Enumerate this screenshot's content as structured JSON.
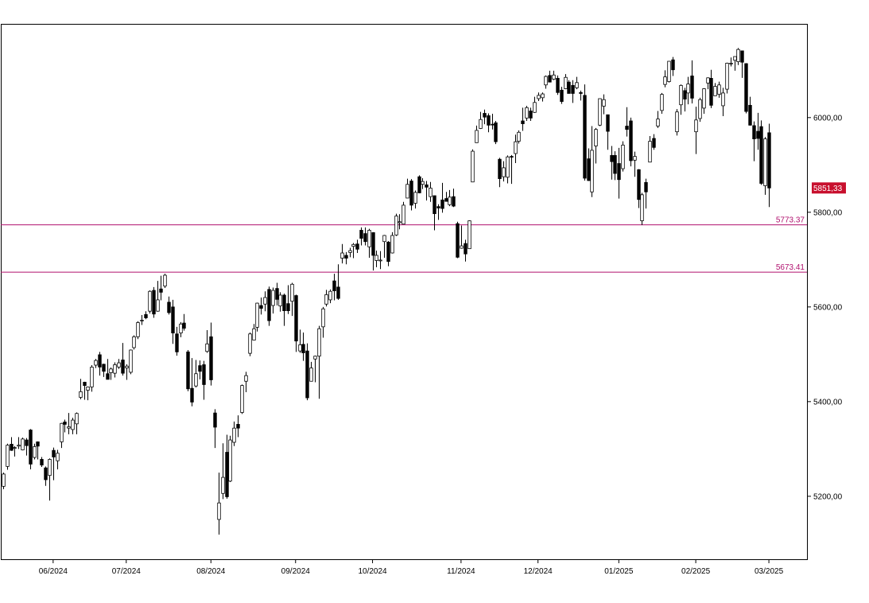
{
  "chart_data": {
    "type": "candlestick",
    "ohlc": [
      [
        5221,
        5250,
        5215,
        5247
      ],
      [
        5263,
        5311,
        5256,
        5308
      ],
      [
        5310,
        5325,
        5296,
        5297
      ],
      [
        5303,
        5306,
        5284,
        5303
      ],
      [
        5306,
        5325,
        5300,
        5308
      ],
      [
        5298,
        5324,
        5297,
        5321
      ],
      [
        5319,
        5323,
        5286,
        5307
      ],
      [
        5340,
        5342,
        5257,
        5268
      ],
      [
        5282,
        5311,
        5278,
        5305
      ],
      [
        5315,
        5316,
        5278,
        5306
      ],
      [
        5278,
        5283,
        5262,
        5266
      ],
      [
        5260,
        5263,
        5222,
        5235
      ],
      [
        5244,
        5280,
        5191,
        5278
      ],
      [
        5297,
        5303,
        5234,
        5283
      ],
      [
        5275,
        5298,
        5257,
        5291
      ],
      [
        5315,
        5355,
        5302,
        5354
      ],
      [
        5357,
        5362,
        5335,
        5352
      ],
      [
        5344,
        5376,
        5331,
        5347
      ],
      [
        5341,
        5366,
        5331,
        5361
      ],
      [
        5353,
        5377,
        5331,
        5375
      ],
      [
        5409,
        5448,
        5405,
        5421
      ],
      [
        5441,
        5442,
        5404,
        5434
      ],
      [
        5424,
        5432,
        5403,
        5431
      ],
      [
        5431,
        5477,
        5421,
        5473
      ],
      [
        5477,
        5490,
        5471,
        5487
      ],
      [
        5499,
        5505,
        5455,
        5473
      ],
      [
        5479,
        5480,
        5452,
        5464
      ],
      [
        5459,
        5490,
        5447,
        5447
      ],
      [
        5461,
        5472,
        5446,
        5469
      ],
      [
        5460,
        5483,
        5451,
        5478
      ],
      [
        5473,
        5490,
        5469,
        5482
      ],
      [
        5488,
        5524,
        5455,
        5460
      ],
      [
        5471,
        5479,
        5446,
        5475
      ],
      [
        5462,
        5510,
        5458,
        5509
      ],
      [
        5514,
        5540,
        5510,
        5537
      ],
      [
        5537,
        5570,
        5532,
        5567
      ],
      [
        5572,
        5583,
        5562,
        5572
      ],
      [
        5584,
        5591,
        5574,
        5577
      ],
      [
        5591,
        5635,
        5586,
        5633
      ],
      [
        5635,
        5642,
        5577,
        5585
      ],
      [
        5591,
        5655,
        5590,
        5615
      ],
      [
        5638,
        5666,
        5614,
        5631
      ],
      [
        5644,
        5670,
        5640,
        5667
      ],
      [
        5610,
        5622,
        5584,
        5588
      ],
      [
        5600,
        5615,
        5522,
        5545
      ],
      [
        5543,
        5558,
        5497,
        5505
      ],
      [
        5545,
        5568,
        5536,
        5564
      ],
      [
        5566,
        5585,
        5550,
        5555
      ],
      [
        5505,
        5509,
        5422,
        5427
      ],
      [
        5428,
        5492,
        5390,
        5399
      ],
      [
        5433,
        5488,
        5430,
        5459
      ],
      [
        5476,
        5487,
        5447,
        5464
      ],
      [
        5478,
        5486,
        5404,
        5436
      ],
      [
        5506,
        5551,
        5503,
        5522
      ],
      [
        5537,
        5567,
        5434,
        5446
      ],
      [
        5376,
        5384,
        5302,
        5346
      ],
      [
        5151,
        5250,
        5119,
        5186
      ],
      [
        5206,
        5312,
        5194,
        5240
      ],
      [
        5293,
        5330,
        5195,
        5199
      ],
      [
        5232,
        5328,
        5230,
        5319
      ],
      [
        5314,
        5358,
        5306,
        5344
      ],
      [
        5352,
        5371,
        5325,
        5344
      ],
      [
        5377,
        5436,
        5374,
        5434
      ],
      [
        5443,
        5463,
        5420,
        5455
      ],
      [
        5502,
        5546,
        5496,
        5543
      ],
      [
        5530,
        5564,
        5530,
        5554
      ],
      [
        5557,
        5609,
        5548,
        5608
      ],
      [
        5603,
        5620,
        5584,
        5597
      ],
      [
        5606,
        5633,
        5591,
        5620
      ],
      [
        5637,
        5643,
        5560,
        5571
      ],
      [
        5603,
        5641,
        5586,
        5635
      ],
      [
        5639,
        5651,
        5603,
        5616
      ],
      [
        5602,
        5631,
        5590,
        5625
      ],
      [
        5625,
        5628,
        5560,
        5592
      ],
      [
        5607,
        5646,
        5585,
        5592
      ],
      [
        5612,
        5651,
        5581,
        5648
      ],
      [
        5624,
        5626,
        5505,
        5528
      ],
      [
        5507,
        5552,
        5503,
        5520
      ],
      [
        5521,
        5546,
        5486,
        5503
      ],
      [
        5507,
        5523,
        5403,
        5408
      ],
      [
        5443,
        5484,
        5443,
        5471
      ],
      [
        5490,
        5497,
        5441,
        5496
      ],
      [
        5496,
        5560,
        5406,
        5554
      ],
      [
        5558,
        5600,
        5535,
        5596
      ],
      [
        5606,
        5636,
        5601,
        5626
      ],
      [
        5615,
        5637,
        5608,
        5633
      ],
      [
        5655,
        5670,
        5614,
        5634
      ],
      [
        5642,
        5690,
        5615,
        5618
      ],
      [
        5703,
        5733,
        5692,
        5714
      ],
      [
        5709,
        5716,
        5690,
        5703
      ],
      [
        5715,
        5725,
        5705,
        5719
      ],
      [
        5728,
        5735,
        5703,
        5732
      ],
      [
        5733,
        5742,
        5714,
        5722
      ],
      [
        5762,
        5768,
        5730,
        5745
      ],
      [
        5755,
        5768,
        5730,
        5738
      ],
      [
        5727,
        5765,
        5704,
        5762
      ],
      [
        5757,
        5758,
        5677,
        5709
      ],
      [
        5698,
        5719,
        5684,
        5709
      ],
      [
        5698,
        5718,
        5680,
        5699
      ],
      [
        5738,
        5752,
        5704,
        5751
      ],
      [
        5737,
        5739,
        5686,
        5696
      ],
      [
        5714,
        5758,
        5713,
        5751
      ],
      [
        5752,
        5797,
        5750,
        5792
      ],
      [
        5778,
        5796,
        5764,
        5780
      ],
      [
        5775,
        5822,
        5775,
        5815
      ],
      [
        5830,
        5871,
        5830,
        5859
      ],
      [
        5866,
        5870,
        5804,
        5815
      ],
      [
        5819,
        5846,
        5808,
        5842
      ],
      [
        5875,
        5878,
        5840,
        5841
      ],
      [
        5859,
        5872,
        5849,
        5865
      ],
      [
        5858,
        5866,
        5825,
        5853
      ],
      [
        5833,
        5864,
        5822,
        5851
      ],
      [
        5835,
        5835,
        5762,
        5797
      ],
      [
        5812,
        5817,
        5784,
        5809
      ],
      [
        5826,
        5862,
        5799,
        5808
      ],
      [
        5829,
        5843,
        5824,
        5823
      ],
      [
        5816,
        5847,
        5813,
        5832
      ],
      [
        5833,
        5850,
        5811,
        5813
      ],
      [
        5776,
        5780,
        5703,
        5705
      ],
      [
        5724,
        5772,
        5723,
        5729
      ],
      [
        5734,
        5742,
        5696,
        5712
      ],
      [
        5723,
        5783,
        5723,
        5782
      ],
      [
        5864,
        5933,
        5864,
        5929
      ],
      [
        5947,
        5983,
        5947,
        5973
      ],
      [
        5977,
        6012,
        5976,
        5996
      ],
      [
        6009,
        6017,
        5986,
        6001
      ],
      [
        6004,
        6009,
        5969,
        5984
      ],
      [
        5986,
        6008,
        5975,
        5985
      ],
      [
        5989,
        5993,
        5944,
        5949
      ],
      [
        5912,
        5915,
        5853,
        5871
      ],
      [
        5875,
        5908,
        5865,
        5894
      ],
      [
        5874,
        5920,
        5861,
        5917
      ],
      [
        5918,
        5921,
        5860,
        5917
      ],
      [
        5924,
        5964,
        5904,
        5949
      ],
      [
        5950,
        5973,
        5945,
        5969
      ],
      [
        5993,
        6021,
        5972,
        5987
      ],
      [
        5999,
        6025,
        5993,
        6021
      ],
      [
        6014,
        6021,
        5993,
        5999
      ],
      [
        6011,
        6044,
        6010,
        6032
      ],
      [
        6040,
        6053,
        6035,
        6047
      ],
      [
        6042,
        6053,
        6034,
        6050
      ],
      [
        6069,
        6089,
        6061,
        6087
      ],
      [
        6089,
        6099,
        6075,
        6075
      ],
      [
        6081,
        6099,
        6079,
        6090
      ],
      [
        6083,
        6089,
        6048,
        6053
      ],
      [
        6058,
        6065,
        6029,
        6034
      ],
      [
        6061,
        6092,
        6060,
        6085
      ],
      [
        6075,
        6079,
        6051,
        6051
      ],
      [
        6068,
        6079,
        6031,
        6051
      ],
      [
        6063,
        6086,
        6060,
        6074
      ],
      [
        6053,
        6057,
        6036,
        6051
      ],
      [
        6047,
        6070,
        5867,
        5872
      ],
      [
        5913,
        5935,
        5866,
        5867
      ],
      [
        5843,
        5982,
        5832,
        5931
      ],
      [
        5940,
        5978,
        5903,
        5975
      ],
      [
        5984,
        6040,
        5982,
        6040
      ],
      [
        6024,
        6049,
        6007,
        6038
      ],
      [
        6006,
        6006,
        5932,
        5971
      ],
      [
        5920,
        5940,
        5869,
        5907
      ],
      [
        5920,
        5929,
        5868,
        5882
      ],
      [
        5903,
        5936,
        5829,
        5869
      ],
      [
        5892,
        5950,
        5886,
        5942
      ],
      [
        5982,
        6022,
        5960,
        5975
      ],
      [
        5993,
        6000,
        5897,
        5909
      ],
      [
        5910,
        5928,
        5875,
        5918
      ],
      [
        5890,
        5891,
        5809,
        5827
      ],
      [
        5782,
        5841,
        5773,
        5837
      ],
      [
        5863,
        5871,
        5808,
        5843
      ],
      [
        5906,
        5961,
        5906,
        5950
      ],
      [
        5956,
        5965,
        5932,
        5937
      ],
      [
        5982,
        6014,
        5978,
        5997
      ],
      [
        6015,
        6052,
        6008,
        6049
      ],
      [
        6070,
        6100,
        6064,
        6086
      ],
      [
        6076,
        6119,
        6074,
        6119
      ],
      [
        6122,
        6128,
        6088,
        6101
      ],
      [
        5970,
        6018,
        5962,
        6012
      ],
      [
        6027,
        6070,
        6006,
        6068
      ],
      [
        6057,
        6063,
        6013,
        6039
      ],
      [
        6052,
        6086,
        6028,
        6071
      ],
      [
        6088,
        6121,
        6030,
        6041
      ],
      [
        5970,
        6023,
        5923,
        5995
      ],
      [
        5998,
        6042,
        5991,
        6038
      ],
      [
        6020,
        6062,
        6008,
        6061
      ],
      [
        6073,
        6085,
        6060,
        6084
      ],
      [
        6083,
        6101,
        6020,
        6026
      ],
      [
        6046,
        6073,
        6046,
        6066
      ],
      [
        6049,
        6076,
        6042,
        6069
      ],
      [
        6025,
        6063,
        6003,
        6052
      ],
      [
        6060,
        6116,
        6051,
        6115
      ],
      [
        6115,
        6127,
        6108,
        6115
      ],
      [
        6121,
        6129,
        6099,
        6129
      ],
      [
        6118,
        6147,
        6111,
        6144
      ],
      [
        6141,
        6141,
        6084,
        6117
      ],
      [
        6114,
        6115,
        6009,
        6013
      ],
      [
        6026,
        6044,
        5983,
        5984
      ],
      [
        5983,
        5992,
        5908,
        5955
      ],
      [
        5971,
        6010,
        5932,
        5956
      ],
      [
        5981,
        5994,
        5858,
        5861
      ],
      [
        5856,
        5959,
        5837,
        5955
      ],
      [
        5968,
        5987,
        5811,
        5851.33
      ]
    ],
    "xlim": [
      -0.6,
      208.9
    ],
    "ylim": [
      5067,
      6198
    ],
    "xticks": [
      {
        "value": 13,
        "label": "06/2024"
      },
      {
        "value": 32,
        "label": "07/2024"
      },
      {
        "value": 54,
        "label": "08/2024"
      },
      {
        "value": 76,
        "label": "09/2024"
      },
      {
        "value": 96,
        "label": "10/2024"
      },
      {
        "value": 119,
        "label": "11/2024"
      },
      {
        "value": 139,
        "label": "12/2024"
      },
      {
        "value": 160,
        "label": "01/2025"
      },
      {
        "value": 180,
        "label": "02/2025"
      },
      {
        "value": 199,
        "label": "03/2025"
      }
    ],
    "yticks": [
      {
        "value": 5200,
        "label": "5200,00"
      },
      {
        "value": 5400,
        "label": "5400,00"
      },
      {
        "value": 5600,
        "label": "5600,00"
      },
      {
        "value": 5800,
        "label": "5800,00"
      },
      {
        "value": 6000,
        "label": "6000,00"
      }
    ],
    "hlines": [
      {
        "value": 5773.37,
        "label": "5773.37"
      },
      {
        "value": 5673.41,
        "label": "5673.41"
      }
    ],
    "last_price": {
      "value": 5851.33,
      "label": "5851,33"
    },
    "up_color": "#ffffff",
    "down_color": "#000000",
    "line_color": "#b0106e",
    "last_price_color": "#c8102e"
  }
}
